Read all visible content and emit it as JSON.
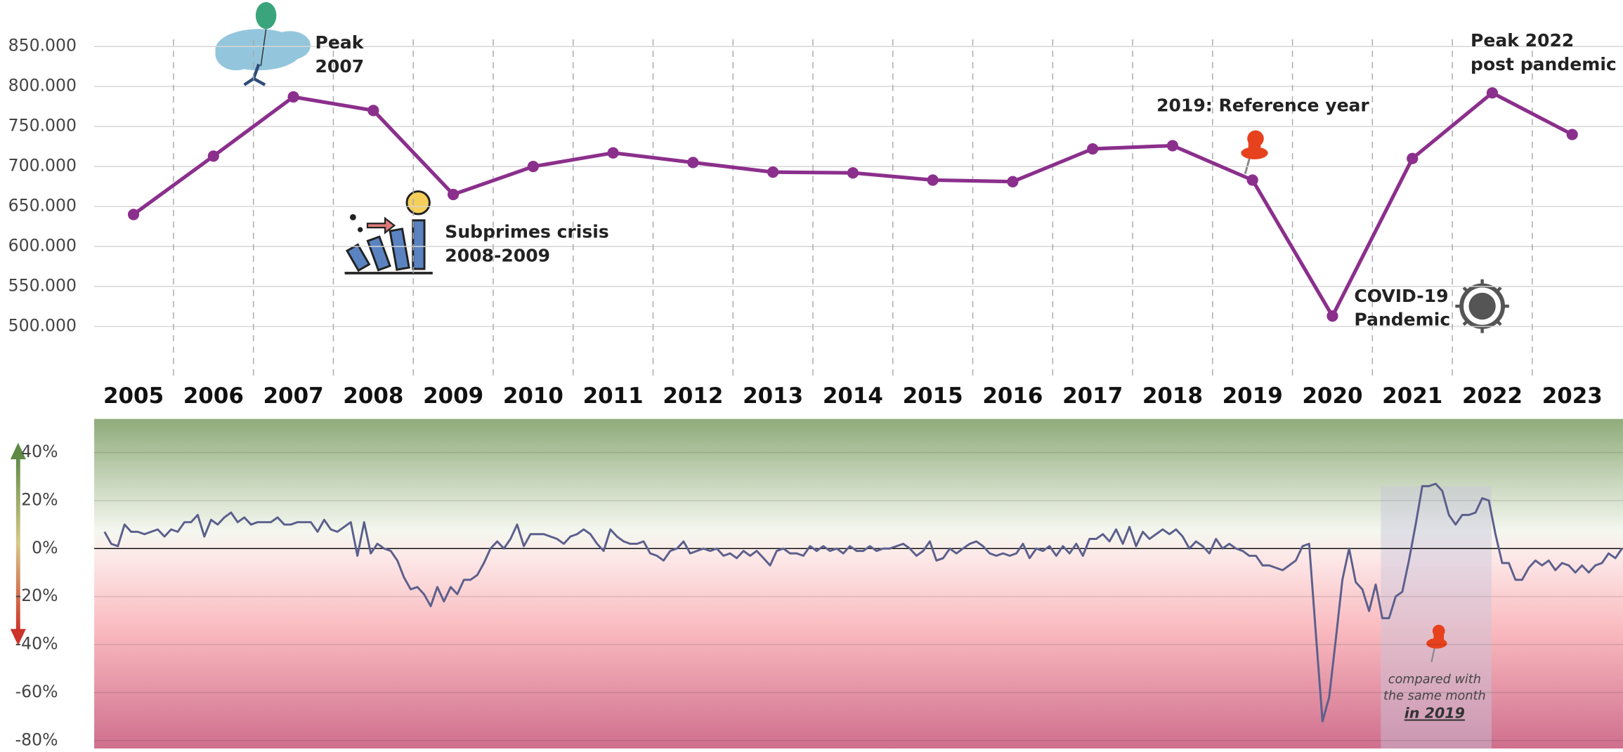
{
  "chart_data": [
    {
      "type": "line",
      "categories": [
        "2005",
        "2006",
        "2007",
        "2008",
        "2009",
        "2010",
        "2011",
        "2012",
        "2013",
        "2014",
        "2015",
        "2016",
        "2017",
        "2018",
        "2019",
        "2020",
        "2021",
        "2022",
        "2023"
      ],
      "values": [
        640000,
        713000,
        787000,
        770000,
        665000,
        700000,
        717000,
        705000,
        693000,
        692000,
        683000,
        681000,
        722000,
        726000,
        683000,
        513000,
        710000,
        792000,
        740000
      ],
      "color": "#8b2f8c",
      "ylim": [
        440000,
        870000
      ],
      "yticks": [
        {
          "value": 500000,
          "label": "500.000"
        },
        {
          "value": 550000,
          "label": "550.000"
        },
        {
          "value": 600000,
          "label": "600.000"
        },
        {
          "value": 650000,
          "label": "650.000"
        },
        {
          "value": 700000,
          "label": "700.000"
        },
        {
          "value": 750000,
          "label": "750.000"
        },
        {
          "value": 800000,
          "label": "800.000"
        },
        {
          "value": 850000,
          "label": "850.000"
        }
      ],
      "grid": true,
      "annotations": [
        {
          "x": "2007",
          "text": [
            "Peak",
            "2007"
          ]
        },
        {
          "x": "2009",
          "text": [
            "Subprimes crisis",
            "2008-2009"
          ]
        },
        {
          "x": "2019",
          "text": [
            "2019: Reference year"
          ]
        },
        {
          "x": "2020",
          "text": [
            "COVID-19",
            "Pandemic"
          ]
        },
        {
          "x": "2022",
          "text": [
            "Peak 2022",
            "post pandemic"
          ]
        }
      ]
    },
    {
      "type": "line",
      "values": [
        7,
        2,
        1,
        10,
        7,
        7,
        6,
        7,
        8,
        5,
        8,
        7,
        11,
        11,
        14,
        5,
        12,
        10,
        13,
        15,
        11,
        13,
        10,
        11,
        11,
        11,
        13,
        10,
        10,
        11,
        11,
        11,
        7,
        12,
        8,
        7,
        9,
        11,
        -3,
        11,
        -2,
        2,
        0,
        -1,
        -5,
        -12,
        -17,
        -16,
        -19,
        -24,
        -16,
        -22,
        -16,
        -19,
        -13,
        -13,
        -11,
        -6,
        0,
        3,
        0,
        4,
        10,
        1,
        6,
        6,
        6,
        5,
        4,
        2,
        5,
        6,
        8,
        6,
        2,
        -1,
        8,
        5,
        3,
        2,
        2,
        3,
        -2,
        -3,
        -5,
        -1,
        0,
        3,
        -2,
        -1,
        0,
        -1,
        0,
        -3,
        -2,
        -4,
        -1,
        -3,
        -1,
        -4,
        -7,
        -1,
        0,
        -2,
        -2,
        -3,
        1,
        -1,
        1,
        -1,
        0,
        -2,
        1,
        -1,
        -1,
        1,
        -1,
        0,
        0,
        1,
        2,
        0,
        -3,
        -1,
        3,
        -5,
        -4,
        0,
        -2,
        0,
        2,
        3,
        1,
        -2,
        -3,
        -2,
        -3,
        -2,
        2,
        -4,
        0,
        -1,
        1,
        -3,
        1,
        -2,
        2,
        -3,
        4,
        4,
        6,
        3,
        8,
        2,
        9,
        1,
        7,
        4,
        6,
        8,
        6,
        8,
        5,
        0,
        3,
        1,
        -2,
        4,
        0,
        2,
        0,
        -1,
        -3,
        -3,
        -7,
        -7,
        -8,
        -9,
        -7,
        -5,
        1,
        2,
        -35,
        -72,
        -62,
        -38,
        -13,
        0,
        -14,
        -17,
        -26,
        -15,
        -29,
        -29,
        -20,
        -18,
        -5,
        10,
        26,
        26,
        27,
        24,
        14,
        10,
        14,
        14,
        15,
        21,
        20,
        6,
        -6,
        -6,
        -13,
        -13,
        -8,
        -5,
        -7,
        -5,
        -9,
        -6,
        -7,
        -10,
        -7,
        -10,
        -7,
        -6,
        -2,
        -4,
        0
      ],
      "color": "#5b5f8c",
      "ylim": [
        -80,
        54
      ],
      "yticks": [
        {
          "value": -80,
          "label": "-80%"
        },
        {
          "value": -60,
          "label": "-60%"
        },
        {
          "value": -40,
          "label": "-40%"
        },
        {
          "value": -20,
          "label": "-20%"
        },
        {
          "value": 0,
          "label": "0%"
        },
        {
          "value": 20,
          "label": "20%"
        },
        {
          "value": 40,
          "label": "40%"
        }
      ],
      "grid": true,
      "annotation": [
        "compared with",
        "the same month",
        "in 2019"
      ]
    }
  ]
}
